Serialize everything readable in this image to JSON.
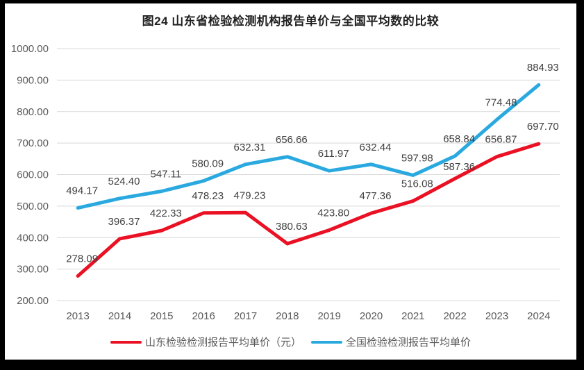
{
  "frame": {
    "outer_background": "#000000",
    "chart_background": "#ffffff"
  },
  "chart_data": {
    "type": "line",
    "title": "图24  山东省检验检测机构报告单价与全国平均数的比较",
    "categories": [
      "2013",
      "2014",
      "2015",
      "2016",
      "2017",
      "2018",
      "2019",
      "2020",
      "2021",
      "2022",
      "2023",
      "2024"
    ],
    "series": [
      {
        "name": "山东检验检测报告平均单价（元）",
        "color": "#E91123",
        "values": [
          278.09,
          396.37,
          422.33,
          478.23,
          479.23,
          380.63,
          423.8,
          477.36,
          516.08,
          587.36,
          656.87,
          697.7
        ]
      },
      {
        "name": "全国检验检测报告平均单价",
        "color": "#29A9E0",
        "values": [
          494.17,
          524.4,
          547.11,
          580.09,
          632.31,
          656.66,
          611.97,
          632.44,
          597.98,
          658.84,
          774.48,
          884.93
        ]
      }
    ],
    "y_axis": {
      "min": 200,
      "max": 1000,
      "step": 100,
      "tick_labels": [
        "200.00",
        "300.00",
        "400.00",
        "500.00",
        "600.00",
        "700.00",
        "800.00",
        "900.00",
        "1000.00"
      ]
    },
    "x_axis": {
      "tick_labels": [
        "2013",
        "2014",
        "2015",
        "2016",
        "2017",
        "2018",
        "2019",
        "2020",
        "2021",
        "2022",
        "2023",
        "2024"
      ]
    },
    "grid": true,
    "data_labels": true,
    "data_label_decimals": 2,
    "legend_position": "bottom",
    "styles": {
      "gridline_color": "#D9D9D9",
      "axis_label_color": "#595959",
      "data_label_color": "#404040",
      "title_color": "#1f1f1f"
    }
  }
}
